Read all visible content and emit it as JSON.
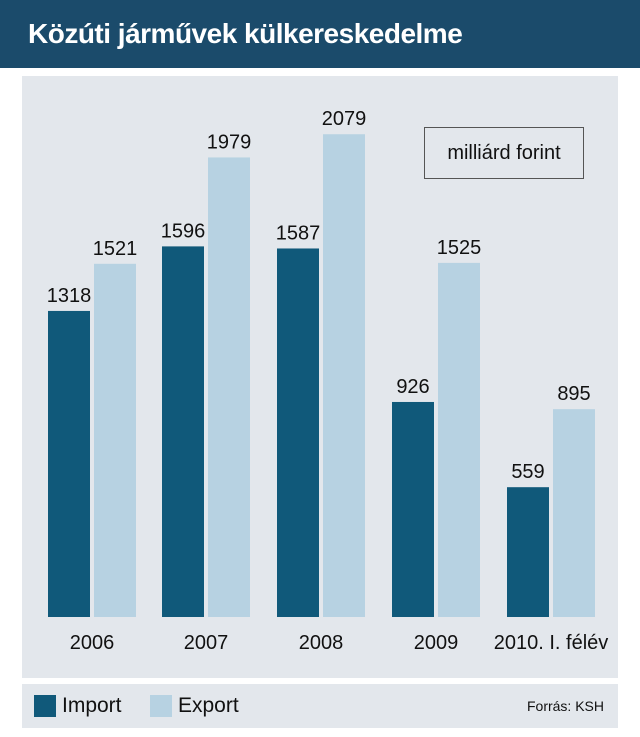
{
  "title": "Közúti járművek külkereskedelme",
  "unit_label": "milliárd forint",
  "source": "Forrás: KSH",
  "colors": {
    "import": "#10597a",
    "export": "#b7d2e2",
    "title_bg": "#1b4b6b",
    "plot_bg": "#e3e7ec"
  },
  "legend": [
    {
      "label": "Import",
      "color": "#10597a"
    },
    {
      "label": "Export",
      "color": "#b7d2e2"
    }
  ],
  "chart_data": {
    "type": "bar",
    "title": "Közúti járművek külkereskedelme",
    "ylabel": "",
    "xlabel": "",
    "unit": "milliárd forint",
    "ylim": [
      0,
      2080
    ],
    "grid": false,
    "legend_position": "bottom",
    "categories": [
      "2006",
      "2007",
      "2008",
      "2009",
      "2010. I. félév"
    ],
    "series": [
      {
        "name": "Import",
        "values": [
          1318,
          1596,
          1587,
          926,
          559
        ]
      },
      {
        "name": "Export",
        "values": [
          1521,
          1979,
          2079,
          1525,
          895
        ]
      }
    ]
  }
}
